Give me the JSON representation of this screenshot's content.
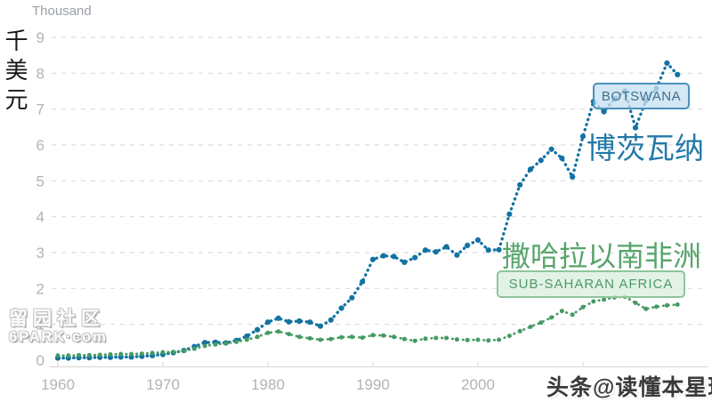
{
  "header": {
    "unit_label": "Thousand",
    "axis_title_cn": "千美元"
  },
  "chart_data": {
    "type": "line",
    "title": "",
    "xlabel": "",
    "ylabel": "Thousand",
    "ylabel_cn": "千美元",
    "ylim": [
      0,
      9
    ],
    "y_ticks": [
      0,
      1,
      2,
      3,
      4,
      5,
      6,
      7,
      8,
      9
    ],
    "x_tick_labels": [
      "1960",
      "1970",
      "1980",
      "1990",
      "2000"
    ],
    "grid": "horizontal-dashed",
    "legend_position": "inline-annotations",
    "x": [
      1960,
      1961,
      1962,
      1963,
      1964,
      1965,
      1966,
      1967,
      1968,
      1969,
      1970,
      1971,
      1972,
      1973,
      1974,
      1975,
      1976,
      1977,
      1978,
      1979,
      1980,
      1981,
      1982,
      1983,
      1984,
      1985,
      1986,
      1987,
      1988,
      1989,
      1990,
      1991,
      1992,
      1993,
      1994,
      1995,
      1996,
      1997,
      1998,
      1999,
      2000,
      2001,
      2002,
      2003,
      2004,
      2005,
      2006,
      2007,
      2008,
      2009,
      2010,
      2011,
      2012,
      2013,
      2014,
      2015,
      2016,
      2017,
      2018,
      2019
    ],
    "series": [
      {
        "name": "BOTSWANA",
        "name_cn": "博茨瓦纳",
        "color": "#1273a2",
        "marker": "dot",
        "line_style": "dash-dot",
        "values": [
          0.06,
          0.06,
          0.07,
          0.07,
          0.08,
          0.08,
          0.09,
          0.09,
          0.11,
          0.13,
          0.16,
          0.21,
          0.27,
          0.38,
          0.49,
          0.5,
          0.48,
          0.55,
          0.67,
          0.85,
          1.06,
          1.17,
          1.07,
          1.09,
          1.06,
          0.95,
          1.12,
          1.45,
          1.74,
          2.19,
          2.81,
          2.91,
          2.89,
          2.73,
          2.86,
          3.07,
          3.02,
          3.16,
          2.93,
          3.2,
          3.35,
          3.07,
          3.08,
          4.07,
          4.89,
          5.32,
          5.57,
          5.88,
          5.63,
          5.11,
          6.24,
          7.21,
          6.93,
          7.29,
          7.5,
          6.48,
          7.24,
          7.58,
          8.28,
          7.96
        ]
      },
      {
        "name": "SUB-SAHARAN AFRICA",
        "name_cn": "撒哈拉以南非洲",
        "color": "#459a63",
        "marker": "dot",
        "line_style": "dash-dot",
        "values": [
          0.13,
          0.13,
          0.14,
          0.14,
          0.15,
          0.16,
          0.17,
          0.17,
          0.18,
          0.2,
          0.22,
          0.23,
          0.26,
          0.32,
          0.4,
          0.44,
          0.47,
          0.51,
          0.57,
          0.65,
          0.76,
          0.8,
          0.73,
          0.65,
          0.61,
          0.57,
          0.59,
          0.64,
          0.65,
          0.63,
          0.7,
          0.69,
          0.65,
          0.59,
          0.54,
          0.6,
          0.62,
          0.62,
          0.58,
          0.56,
          0.57,
          0.55,
          0.57,
          0.68,
          0.81,
          0.93,
          1.05,
          1.19,
          1.37,
          1.27,
          1.48,
          1.64,
          1.69,
          1.75,
          1.77,
          1.6,
          1.43,
          1.49,
          1.53,
          1.55
        ]
      }
    ]
  },
  "watermarks": {
    "site_line1": "留园社区",
    "site_line2": "6PARK·com",
    "byline": "头条@读懂本星球"
  },
  "colors": {
    "background": "#ffffff",
    "gridline": "#dcdcdc",
    "axis_line": "#d6d6d6",
    "tick_label": "#b3b3b3",
    "unit_label": "#9aa0a6",
    "botswana_line": "#1273a2",
    "botswana_tag_bg": "#c7e0f1",
    "botswana_tag_border": "#4a92bd",
    "ssa_line": "#459a63",
    "ssa_tag_bg": "#ddefe2",
    "ssa_tag_border": "#8ec49b"
  }
}
